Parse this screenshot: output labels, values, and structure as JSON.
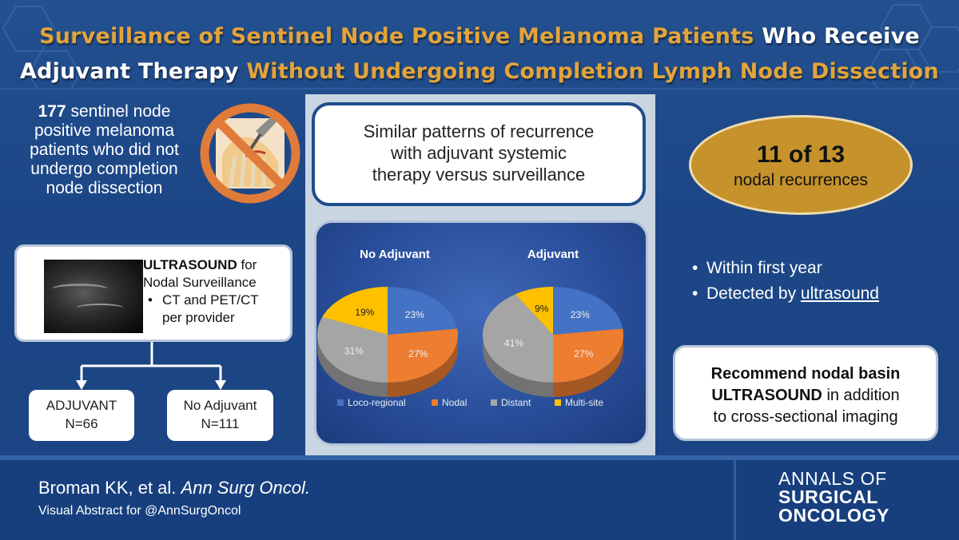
{
  "header": {
    "title_part1": "Surveillance of Sentinel Node Positive Melanoma Patients",
    "title_part2": "Who Receive",
    "title_part3": "Adjuvant Therapy",
    "title_part4": "Without Undergoing Completion Lymph Node Dissection"
  },
  "left": {
    "count": "177",
    "count_line1_rest": "sentinel node",
    "line2": "positive melanoma",
    "line3": "patients who did not",
    "line4": "undergo completion",
    "line5": "node dissection",
    "surveillance": {
      "title_bold": "ULTRASOUND",
      "title_rest": "for",
      "title_line2": "Nodal Surveillance",
      "bullet_line1": "CT and PET/CT",
      "bullet_line2": "per provider"
    },
    "groups": [
      {
        "label": "ADJUVANT",
        "n": "N=66"
      },
      {
        "label": "No Adjuvant",
        "n": "N=111"
      }
    ]
  },
  "center": {
    "headline_line1": "Similar patterns of recurrence",
    "headline_line2": "with adjuvant systemic",
    "headline_line3": "therapy versus surveillance"
  },
  "chart_data": {
    "type": "pie",
    "charts": [
      {
        "title": "No Adjuvant",
        "values": [
          23,
          27,
          31,
          19
        ],
        "labels": [
          "23%",
          "27%",
          "31%",
          "19%"
        ]
      },
      {
        "title": "Adjuvant",
        "values": [
          23,
          27,
          41,
          9
        ],
        "labels": [
          "23%",
          "27%",
          "41%",
          "9%"
        ]
      }
    ],
    "legend": [
      "Loco-regional",
      "Nodal",
      "Distant",
      "Multi-site"
    ],
    "colors": [
      "#4472c4",
      "#ed7d31",
      "#a5a5a5",
      "#ffc000"
    ]
  },
  "right": {
    "big": "11 of 13",
    "small": "nodal recurrences",
    "bullet1": "Within first year",
    "bullet2_prefix": "Detected by",
    "bullet2_link": "ultrasound",
    "rec_bold1": "Recommend nodal basin",
    "rec_bold2": "ULTRASOUND",
    "rec_rest2": "in addition",
    "rec_line3": "to cross-sectional imaging"
  },
  "footer": {
    "authors": "Broman KK, et al.",
    "journal": "Ann Surg Oncol.",
    "subtitle": "Visual Abstract for @AnnSurgOncol",
    "logo_line1": "ANNALS OF",
    "logo_line2": "SURGICAL",
    "logo_line3": "ONCOLOGY"
  }
}
